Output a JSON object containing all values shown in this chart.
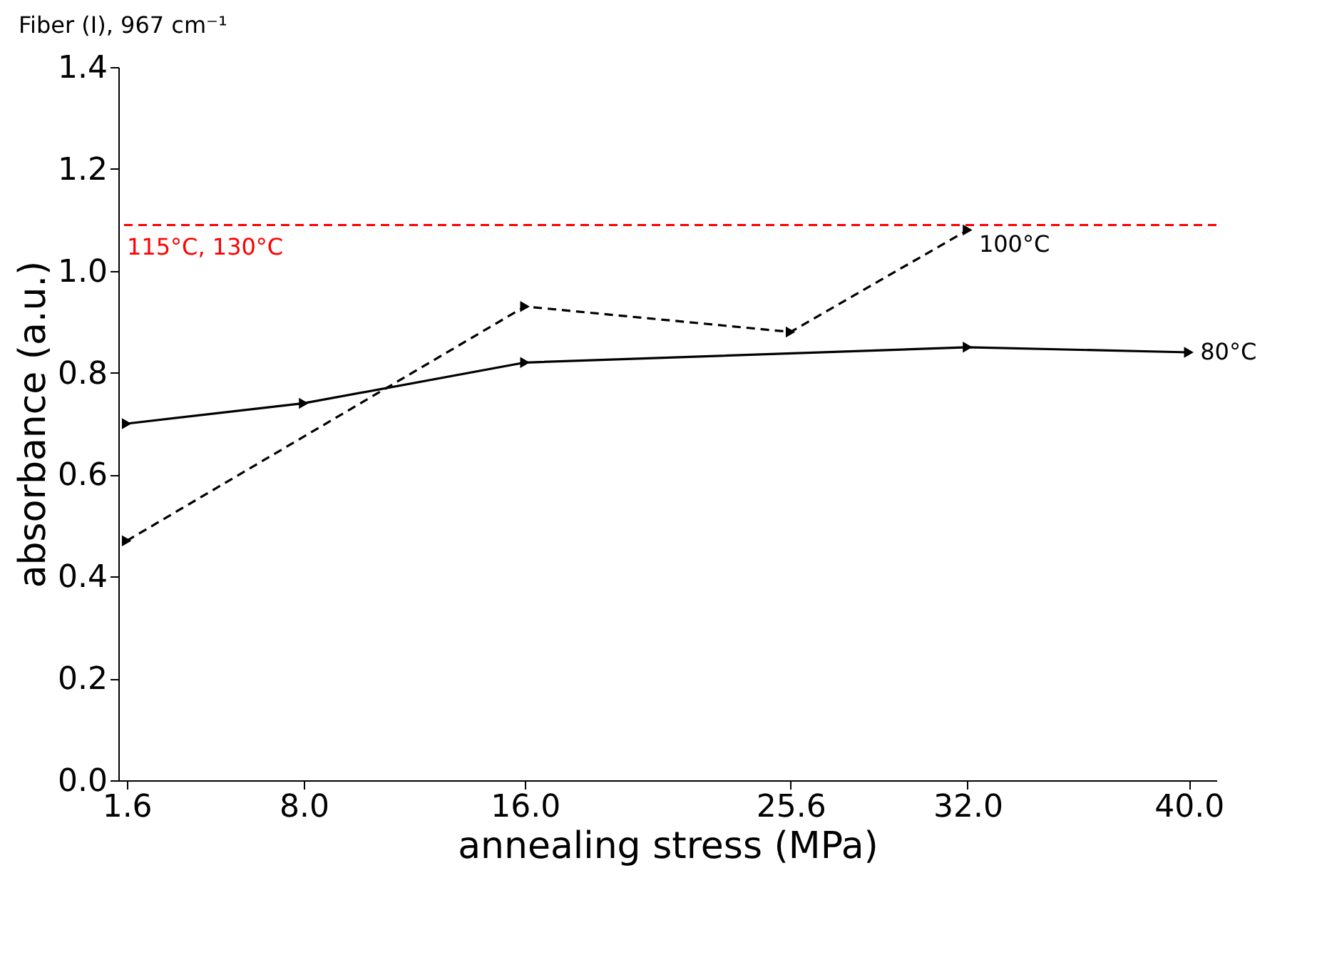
{
  "chart_data": {
    "type": "line",
    "title": "Fiber (I), 967 cm⁻¹",
    "xlabel": "annealing stress (MPa)",
    "ylabel": "absorbance (a.u.)",
    "series": [
      {
        "name": "80°C",
        "color": "#000000",
        "line_style": "solid",
        "x": [
          1.6,
          8.0,
          16.0,
          32.0,
          40.0
        ],
        "values": [
          0.7,
          0.74,
          0.82,
          0.85,
          0.84
        ]
      },
      {
        "name": "100°C",
        "color": "#000000",
        "line_style": "dashed",
        "x": [
          1.6,
          16.0,
          25.6,
          32.0
        ],
        "values": [
          0.47,
          0.93,
          0.88,
          1.08
        ]
      }
    ],
    "marker": "triangle",
    "xlim": [
      1.3,
      41.0
    ],
    "xticks": [
      1.6,
      {
        "value": 8,
        "label": "8.0"
      },
      {
        "value": 16,
        "label": "16.0"
      },
      25.6,
      {
        "value": 32,
        "label": "32.0"
      },
      {
        "value": 40,
        "label": "40.0"
      }
    ],
    "ylim": [
      0,
      1.4
    ],
    "yticks": [
      {
        "value": 0,
        "label": "0.0"
      },
      0.2,
      0.4,
      0.6,
      0.8,
      {
        "value": 1,
        "label": "1.0"
      },
      1.2,
      1.4
    ],
    "ref_lines": [
      {
        "axis": "y",
        "value": 1.09,
        "label": "115°C, 130°C",
        "color": "#ff0000",
        "line_style": "dashed"
      }
    ],
    "grid": false
  }
}
